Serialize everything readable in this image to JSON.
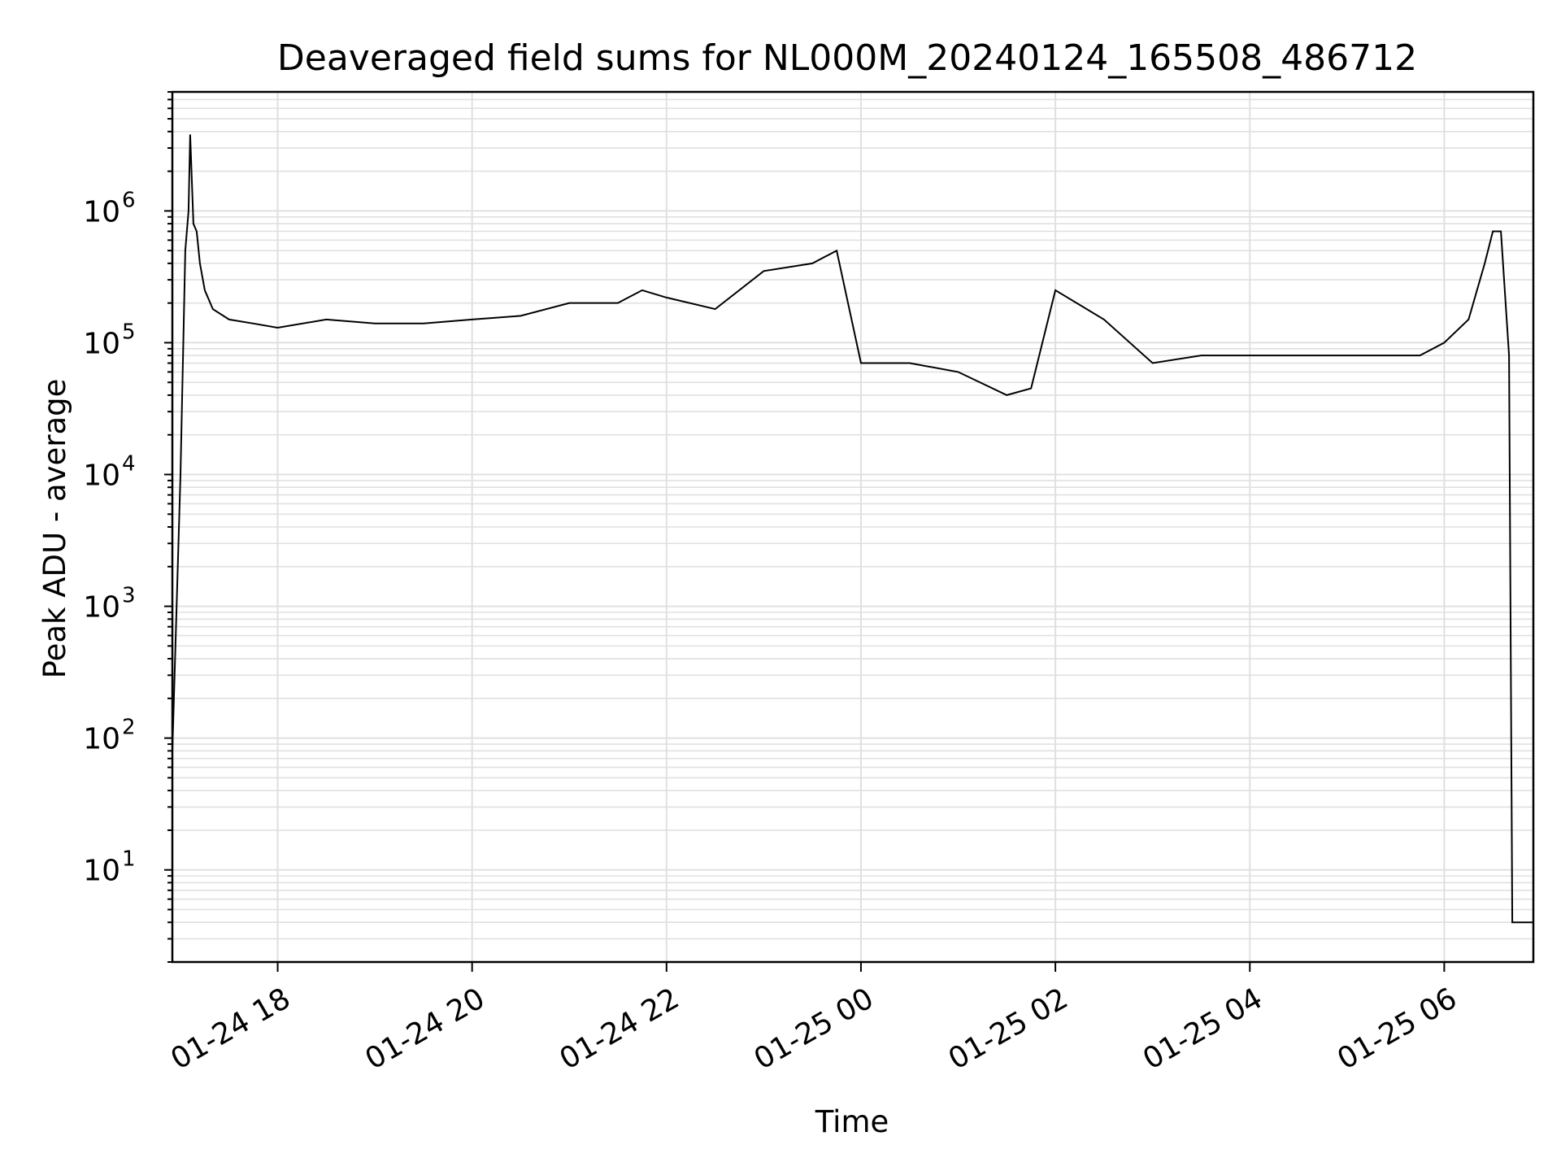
{
  "chart_data": {
    "type": "line",
    "title": "Deaveraged field sums for NL000M_20240124_165508_486712",
    "xlabel": "Time",
    "ylabel": "Peak ADU - average",
    "y_scale": "log",
    "ylim": [
      2,
      8000000
    ],
    "xlim": [
      "01-24 16:55",
      "01-25 06:55"
    ],
    "grid": true,
    "line_color": "#000000",
    "grid_color": "#e0e0e0",
    "x_ticks": [
      {
        "value": "01-24 18:00",
        "label": "01-24 18"
      },
      {
        "value": "01-24 20:00",
        "label": "01-24 20"
      },
      {
        "value": "01-24 22:00",
        "label": "01-24 22"
      },
      {
        "value": "01-25 00:00",
        "label": "01-25 00"
      },
      {
        "value": "01-25 02:00",
        "label": "01-25 02"
      },
      {
        "value": "01-25 04:00",
        "label": "01-25 04"
      },
      {
        "value": "01-25 06:00",
        "label": "01-25 06"
      }
    ],
    "y_ticks": [
      {
        "value": 10,
        "base": "10",
        "exp": "1"
      },
      {
        "value": 100,
        "base": "10",
        "exp": "2"
      },
      {
        "value": 1000,
        "base": "10",
        "exp": "3"
      },
      {
        "value": 10000,
        "base": "10",
        "exp": "4"
      },
      {
        "value": 100000,
        "base": "10",
        "exp": "5"
      },
      {
        "value": 1000000,
        "base": "10",
        "exp": "6"
      }
    ],
    "series": [
      {
        "x": [
          "01-24 16:55",
          "01-24 17:00",
          "01-24 17:03",
          "01-24 17:05",
          "01-24 17:06",
          "01-24 17:08",
          "01-24 17:10",
          "01-24 17:12",
          "01-24 17:15",
          "01-24 17:20",
          "01-24 17:30",
          "01-24 17:45",
          "01-24 18:00",
          "01-24 18:30",
          "01-24 19:00",
          "01-24 19:30",
          "01-24 20:00",
          "01-24 20:30",
          "01-24 21:00",
          "01-24 21:30",
          "01-24 21:45",
          "01-24 22:00",
          "01-24 22:30",
          "01-24 23:00",
          "01-24 23:30",
          "01-24 23:45",
          "01-25 00:00",
          "01-25 00:30",
          "01-25 01:00",
          "01-25 01:30",
          "01-25 01:45",
          "01-25 02:00",
          "01-25 02:30",
          "01-25 03:00",
          "01-25 03:30",
          "01-25 04:00",
          "01-25 04:30",
          "01-25 05:00",
          "01-25 05:30",
          "01-25 05:45",
          "01-25 06:00",
          "01-25 06:15",
          "01-25 06:25",
          "01-25 06:30",
          "01-25 06:35",
          "01-25 06:40",
          "01-25 06:42",
          "01-25 06:55"
        ],
        "y": [
          80,
          10000,
          500000,
          1000000,
          3800000,
          800000,
          700000,
          400000,
          250000,
          180000,
          150000,
          140000,
          130000,
          150000,
          140000,
          140000,
          150000,
          160000,
          200000,
          200000,
          250000,
          220000,
          180000,
          350000,
          400000,
          500000,
          70000,
          70000,
          60000,
          40000,
          45000,
          250000,
          150000,
          70000,
          80000,
          80000,
          80000,
          80000,
          80000,
          80000,
          100000,
          150000,
          400000,
          700000,
          700000,
          80000,
          4,
          4
        ]
      }
    ]
  }
}
